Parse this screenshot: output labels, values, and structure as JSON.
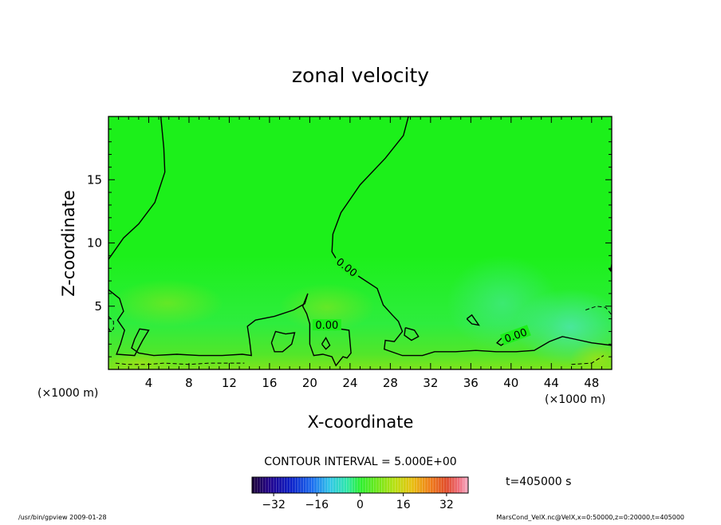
{
  "chart_data": {
    "type": "heatmap",
    "title": "zonal velocity",
    "xlabel": "X-coordinate",
    "ylabel": "Z-coordinate",
    "x_unit": "(×1000 m)",
    "y_unit": "(×1000 m)",
    "xlim": [
      0,
      50
    ],
    "ylim": [
      0,
      20
    ],
    "x_ticks": [
      4,
      8,
      12,
      16,
      20,
      24,
      28,
      32,
      36,
      40,
      44,
      48
    ],
    "y_ticks": [
      5,
      10,
      15
    ],
    "contour_interval_text": "CONTOUR INTERVAL = 5.000E+00",
    "contour_labels": [
      {
        "text": "0.00",
        "x": 23.6,
        "z": 8.0,
        "rotate": 38
      },
      {
        "text": "0.00",
        "x": 21.7,
        "z": 3.4,
        "rotate": 0
      },
      {
        "text": "0.00",
        "x": 40.5,
        "z": 2.6,
        "rotate": -20
      }
    ],
    "time_label": "t=405000 s",
    "colorbar": {
      "range": [
        -40,
        40
      ],
      "tick_values": [
        -32,
        -16,
        0,
        16,
        32
      ],
      "tick_labels": [
        "−32",
        "−16",
        "0",
        "16",
        "32"
      ]
    },
    "zero_contours": [
      [
        [
          5.2,
          20
        ],
        [
          5.5,
          17.5
        ],
        [
          5.6,
          15.6
        ],
        [
          4.6,
          13.2
        ],
        [
          3.0,
          11.5
        ],
        [
          1.5,
          10.4
        ],
        [
          0,
          8.7
        ]
      ],
      [
        [
          29.8,
          20
        ],
        [
          29.3,
          18.5
        ],
        [
          27.5,
          16.7
        ],
        [
          25.0,
          14.6
        ],
        [
          23.1,
          12.4
        ],
        [
          22.3,
          10.7
        ],
        [
          22.2,
          9.3
        ],
        [
          22.9,
          8.4
        ],
        [
          24.4,
          7.6
        ],
        [
          26.7,
          6.4
        ],
        [
          27.3,
          5.1
        ],
        [
          28.2,
          4.3
        ],
        [
          28.8,
          3.8
        ],
        [
          29.2,
          3.0
        ],
        [
          28.4,
          2.2
        ],
        [
          27.5,
          2.3
        ],
        [
          27.4,
          1.6
        ],
        [
          29.2,
          1.1
        ],
        [
          31.2,
          1.1
        ],
        [
          32.4,
          1.4
        ],
        [
          34.5,
          1.4
        ],
        [
          36.5,
          1.5
        ],
        [
          38.5,
          1.4
        ],
        [
          40.5,
          1.4
        ],
        [
          42.3,
          1.5
        ],
        [
          43.8,
          2.2
        ],
        [
          45.1,
          2.6
        ],
        [
          46.3,
          2.4
        ],
        [
          48.0,
          2.1
        ],
        [
          50,
          1.9
        ]
      ],
      [
        [
          0,
          6.3
        ],
        [
          1.1,
          5.6
        ],
        [
          1.5,
          4.6
        ],
        [
          0.9,
          3.9
        ],
        [
          1.6,
          3.1
        ],
        [
          1.2,
          2.0
        ],
        [
          0.8,
          1.2
        ],
        [
          2.6,
          1.1
        ],
        [
          3.4,
          2.3
        ],
        [
          4.0,
          3.1
        ],
        [
          3.1,
          3.2
        ],
        [
          2.6,
          2.4
        ],
        [
          2.3,
          1.7
        ],
        [
          3.0,
          1.3
        ],
        [
          4.5,
          1.1
        ],
        [
          6.8,
          1.2
        ],
        [
          9.0,
          1.1
        ],
        [
          11.3,
          1.1
        ],
        [
          13.3,
          1.2
        ],
        [
          14.2,
          1.1
        ],
        [
          14.0,
          2.4
        ],
        [
          13.8,
          3.4
        ],
        [
          14.6,
          3.9
        ],
        [
          16.5,
          4.2
        ],
        [
          18.4,
          4.7
        ],
        [
          19.5,
          5.2
        ],
        [
          19.8,
          6.0
        ],
        [
          19.3,
          5.0
        ],
        [
          19.7,
          4.4
        ],
        [
          20.0,
          3.6
        ],
        [
          20.0,
          2.0
        ],
        [
          20.4,
          1.1
        ],
        [
          21.3,
          1.2
        ],
        [
          22.2,
          1.0
        ],
        [
          22.6,
          0.3
        ],
        [
          23.3,
          1.0
        ],
        [
          23.7,
          0.9
        ],
        [
          24.1,
          1.3
        ],
        [
          23.9,
          3.1
        ],
        [
          22.1,
          3.3
        ],
        [
          21.4,
          3.6
        ]
      ],
      [
        [
          16.2,
          2.1
        ],
        [
          16.6,
          3.0
        ],
        [
          17.6,
          2.8
        ],
        [
          18.5,
          2.9
        ],
        [
          18.2,
          2.0
        ],
        [
          17.3,
          1.4
        ],
        [
          16.5,
          1.4
        ],
        [
          16.2,
          2.1
        ]
      ],
      [
        [
          21.2,
          2.0
        ],
        [
          21.6,
          2.5
        ],
        [
          22.0,
          1.9
        ],
        [
          21.6,
          1.6
        ],
        [
          21.2,
          2.0
        ]
      ],
      [
        [
          29.5,
          3.3
        ],
        [
          30.4,
          3.1
        ],
        [
          30.8,
          2.6
        ],
        [
          30.1,
          2.3
        ],
        [
          29.4,
          2.7
        ],
        [
          29.5,
          3.3
        ]
      ],
      [
        [
          35.6,
          4.0
        ],
        [
          36.1,
          3.6
        ],
        [
          36.8,
          3.5
        ],
        [
          36.1,
          4.3
        ],
        [
          35.6,
          4.0
        ]
      ],
      [
        [
          39.1,
          2.5
        ],
        [
          39.6,
          2.2
        ],
        [
          39.0,
          1.9
        ],
        [
          38.6,
          2.1
        ],
        [
          39.1,
          2.5
        ]
      ],
      [
        [
          49.7,
          8.0
        ],
        [
          49.9,
          7.8
        ],
        [
          50,
          8.3
        ]
      ]
    ],
    "negative_contours": [
      [
        [
          0,
          4.2
        ],
        [
          0.5,
          3.8
        ],
        [
          0.5,
          3.2
        ],
        [
          0.2,
          3.0
        ],
        [
          0,
          3.3
        ]
      ],
      [
        [
          0.7,
          0.5
        ],
        [
          1.8,
          0.4
        ],
        [
          4.0,
          0.4
        ],
        [
          5.5,
          0.5
        ],
        [
          8.0,
          0.4
        ],
        [
          10.0,
          0.5
        ],
        [
          13.5,
          0.5
        ]
      ],
      [
        [
          47.4,
          4.7
        ],
        [
          48.5,
          5.0
        ],
        [
          49.4,
          4.9
        ],
        [
          50,
          4.3
        ]
      ],
      [
        [
          46.0,
          0.4
        ],
        [
          48.0,
          0.5
        ],
        [
          49.2,
          1.1
        ]
      ]
    ]
  },
  "footer": {
    "left": "/usr/bin/gpview   2009-01-28",
    "right": "MarsCond_VelX.nc@VelX,x=0:50000,z=0:20000,t=405000"
  },
  "colors": {
    "field": "#1bef1b",
    "field_upper": "#17f01d",
    "field_lower": "#6ee31e",
    "field_cyan": "#4ee79a",
    "contour": "#000000",
    "frame": "#000000"
  }
}
